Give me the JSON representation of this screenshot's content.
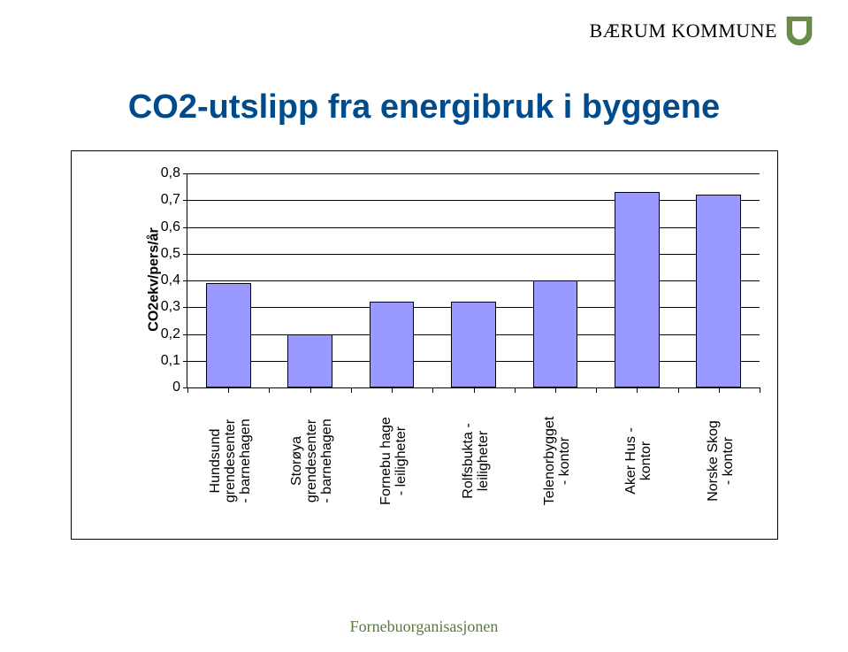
{
  "brand": "BÆRUM KOMMUNE",
  "footer": "Fornebuorganisasjonen",
  "chart": {
    "type": "bar",
    "title": "CO2-utslipp fra energibruk i byggene",
    "title_color": "#004b8c",
    "title_fontsize": 38,
    "ylabel": "CO2ekv/pers/år",
    "label_fontsize": 16,
    "ylim": [
      0,
      0.8
    ],
    "yticks": [
      "0",
      "0,1",
      "0,2",
      "0,3",
      "0,4",
      "0,5",
      "0,6",
      "0,7",
      "0,8"
    ],
    "ytick_values": [
      0,
      0.1,
      0.2,
      0.3,
      0.4,
      0.5,
      0.6,
      0.7,
      0.8
    ],
    "background_color": "#ffffff",
    "grid_color": "#000000",
    "bar_color": "#9999ff",
    "bar_border_color": "#000000",
    "bar_width": 0.55,
    "categories": [
      "Hundsund grendesenter - barnehagen",
      "Storøya grendesenter - barnehagen",
      "Fornebu hage - leiligheter",
      "Rolfsbukta - leiligheter",
      "Telenorbygget - kontor",
      "Aker Hus - kontor",
      "Norske Skog - kontor"
    ],
    "category_lines": [
      [
        "Hundsund",
        "grendesenter",
        "- barnehagen"
      ],
      [
        "Storøya",
        "grendesenter",
        "- barnehagen"
      ],
      [
        "Fornebu hage",
        "- leiligheter"
      ],
      [
        "Rolfsbukta -",
        "leiligheter"
      ],
      [
        "Telenorbygget",
        "- kontor"
      ],
      [
        "Aker Hus -",
        "kontor"
      ],
      [
        "Norske Skog",
        "- kontor"
      ]
    ],
    "values": [
      0.39,
      0.2,
      0.32,
      0.32,
      0.4,
      0.73,
      0.72
    ]
  },
  "logo_colors": {
    "outer": "#6b8b4a",
    "inner": "#ffffff"
  }
}
